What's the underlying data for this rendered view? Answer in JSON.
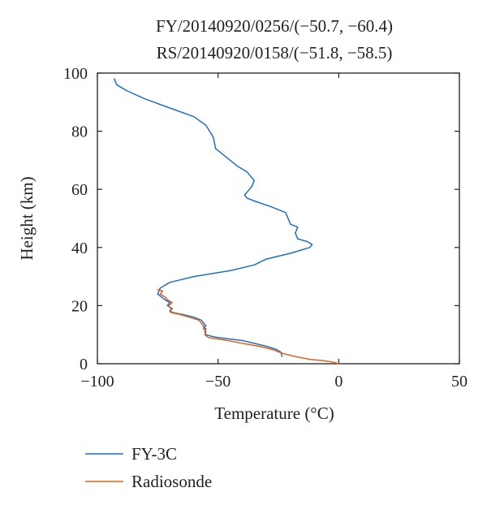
{
  "chart_data": {
    "type": "line",
    "title": "FY/20140920/0256/(−50.7, −60.4)",
    "subtitle": "RS/20140920/0158/(−51.8, −58.5)",
    "xlabel": "Temperature (°C)",
    "ylabel": "Height (km)",
    "xlim": [
      -100,
      50
    ],
    "ylim": [
      0,
      100
    ],
    "xticks": [
      -100,
      -50,
      0,
      50
    ],
    "xtick_labels": [
      "−100",
      "−50",
      "0",
      "50"
    ],
    "yticks": [
      0,
      20,
      40,
      60,
      80,
      100
    ],
    "ytick_labels": [
      "0",
      "20",
      "40",
      "60",
      "80",
      "100"
    ],
    "grid": false,
    "legend_position": "bottom-left, below plot",
    "series": [
      {
        "name": "FY-3C",
        "color": "#1f6fc5",
        "x": [
          -23.5,
          -24,
          -26,
          -30,
          -35,
          -40,
          -45,
          -50,
          -53,
          -55,
          -55.5,
          -55,
          -56,
          -55,
          -56,
          -57,
          -60,
          -65,
          -68,
          -70,
          -69,
          -71,
          -70,
          -72,
          -75,
          -74,
          -70,
          -60,
          -45,
          -35,
          -30,
          -25,
          -20,
          -16,
          -12,
          -11,
          -13,
          -17,
          -18,
          -17,
          -20,
          -21,
          -22,
          -28,
          -35,
          -38,
          -39,
          -38,
          -37,
          -36,
          -35,
          -36,
          -37,
          -38,
          -42,
          -45,
          -48,
          -51,
          -51.5,
          -52,
          -55,
          -60,
          -70,
          -80,
          -88,
          -92,
          -93
        ],
        "y": [
          2.5,
          4,
          5,
          6,
          7,
          8,
          8.5,
          9,
          9.5,
          10,
          11,
          12,
          12.5,
          13,
          14,
          15,
          16,
          17,
          17.5,
          18,
          19,
          20,
          21,
          22,
          24,
          26,
          28,
          30,
          32,
          34,
          36,
          37,
          38,
          39,
          40,
          41,
          42,
          43,
          45,
          47,
          48,
          50,
          52,
          54,
          56,
          57,
          58,
          59,
          60,
          61,
          63,
          64,
          65,
          66,
          68,
          70,
          72,
          74,
          76,
          78,
          82,
          85,
          88,
          91,
          94,
          96,
          98
        ]
      },
      {
        "name": "Radiosonde",
        "color": "#e0641a",
        "x": [
          0,
          -2,
          -6,
          -12,
          -18,
          -23,
          -28,
          -33,
          -40,
          -46,
          -50,
          -54,
          -55.5,
          -55,
          -56,
          -56,
          -58,
          -62,
          -66,
          -69,
          -70,
          -69.5,
          -70.5,
          -69,
          -71,
          -72,
          -74,
          -73,
          -75
        ],
        "y": [
          0,
          0.5,
          1,
          1.5,
          2.5,
          3.5,
          5,
          6,
          7,
          8,
          8.5,
          9,
          10,
          11,
          12,
          13,
          15,
          16,
          17,
          17.5,
          18,
          19,
          20,
          21,
          22,
          23,
          24,
          25,
          25.5
        ]
      }
    ]
  }
}
